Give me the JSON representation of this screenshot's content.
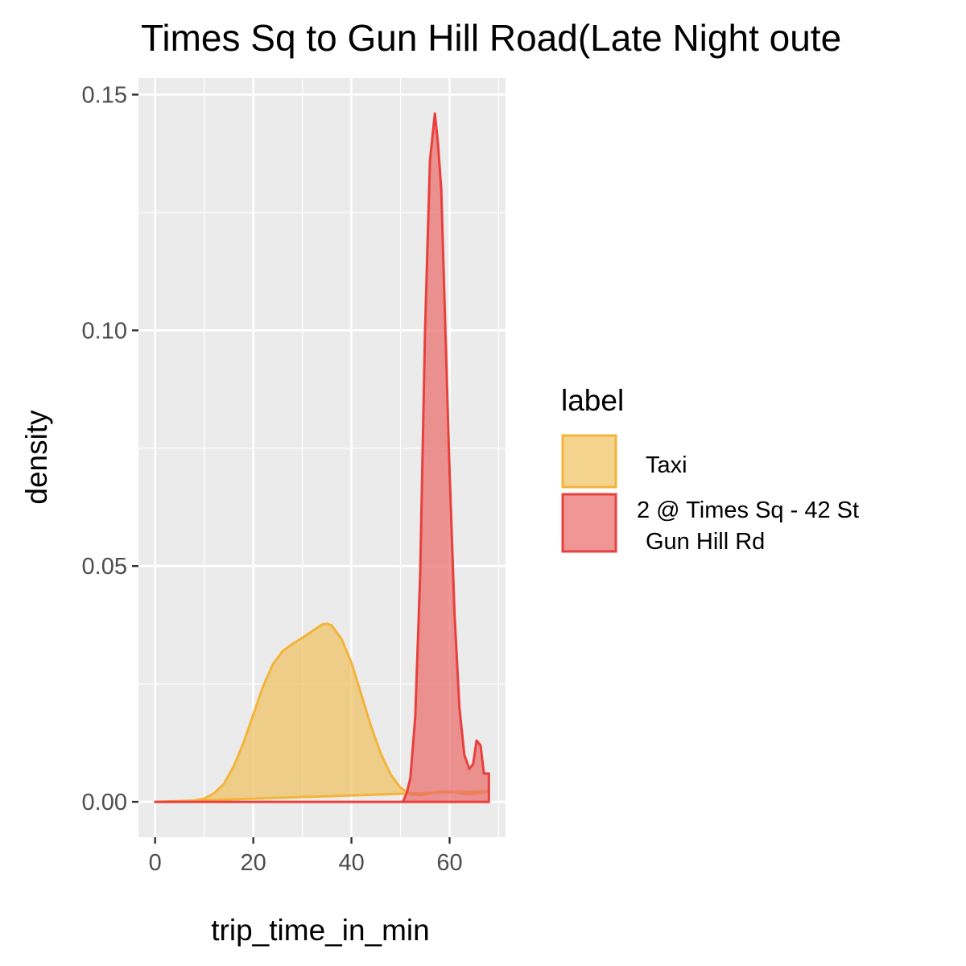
{
  "chart_data": {
    "type": "area",
    "title": "Times Sq to Gun Hill Road(Late Night oute",
    "xlabel": "trip_time_in_min",
    "ylabel": "density",
    "xlim": [
      -3.4,
      71.4
    ],
    "ylim": [
      -0.0075,
      0.1535
    ],
    "x_ticks": [
      0,
      20,
      40,
      60
    ],
    "x_tick_labels": [
      "0",
      "20",
      "40",
      "60"
    ],
    "y_ticks": [
      0.0,
      0.05,
      0.1,
      0.15
    ],
    "y_tick_labels": [
      "0.00",
      "0.05",
      "0.10",
      "0.15"
    ],
    "grid": true,
    "legend": {
      "title": "label",
      "position": "right",
      "entries": [
        {
          "label": "Taxi",
          "fill": "#F0C060",
          "stroke": "#F4B43A"
        },
        {
          "label_lines": [
            "2 @ Times Sq - 42 St",
            "Gun Hill Rd"
          ],
          "fill": "#EA6A68",
          "stroke": "#E8403C"
        }
      ]
    },
    "series": [
      {
        "name": "Taxi",
        "fill": "#F0C060",
        "stroke": "#F4B43A",
        "x": [
          0,
          5,
          8,
          10,
          12,
          14,
          16,
          18,
          20,
          22,
          24,
          26,
          28,
          30,
          32,
          34,
          35,
          36,
          38,
          40,
          42,
          44,
          46,
          48,
          50,
          52,
          54,
          56,
          58,
          60,
          62,
          64,
          66,
          68
        ],
        "y": [
          0.0,
          0.0001,
          0.0003,
          0.0007,
          0.0018,
          0.0038,
          0.0075,
          0.0125,
          0.0185,
          0.0245,
          0.0292,
          0.032,
          0.0335,
          0.0348,
          0.0362,
          0.0376,
          0.0378,
          0.0374,
          0.0345,
          0.0295,
          0.0228,
          0.016,
          0.0102,
          0.0058,
          0.003,
          0.0016,
          0.0014,
          0.0018,
          0.0022,
          0.0022,
          0.0018,
          0.0016,
          0.0018,
          0.0023
        ]
      },
      {
        "name": "2 @ Times Sq - 42 St Gun Hill Rd",
        "fill": "#EA6A68",
        "stroke": "#E8403C",
        "x": [
          0,
          50.5,
          51.3,
          52,
          53,
          54,
          55,
          56,
          57,
          57.6,
          58.3,
          59,
          60,
          61,
          62,
          63,
          64,
          64.8,
          65.5,
          66.3,
          67,
          67.5,
          68,
          68
        ],
        "y": [
          0.0,
          0.0,
          0.002,
          0.005,
          0.018,
          0.048,
          0.1,
          0.136,
          0.146,
          0.14,
          0.13,
          0.105,
          0.07,
          0.04,
          0.02,
          0.01,
          0.007,
          0.008,
          0.013,
          0.012,
          0.006,
          0.006,
          0.006,
          0.0
        ]
      }
    ]
  }
}
